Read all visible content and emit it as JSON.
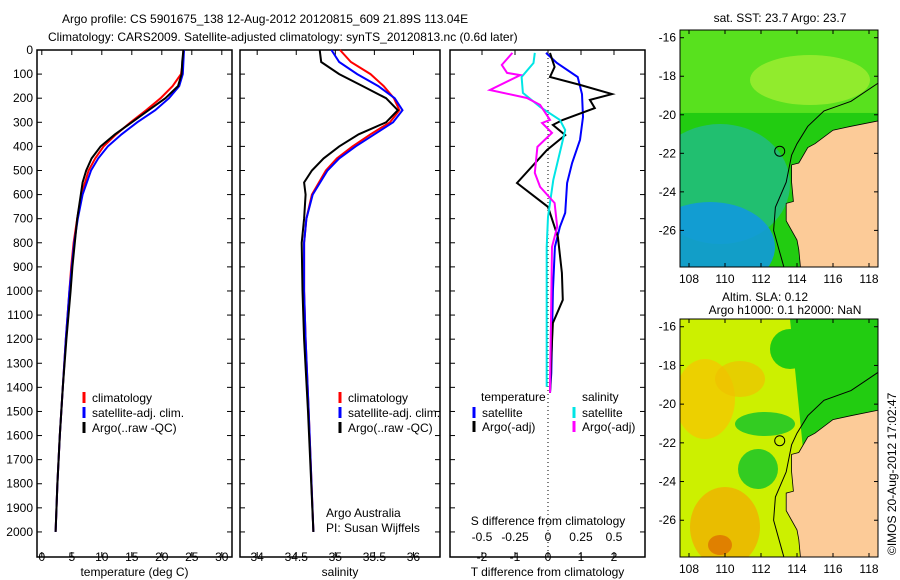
{
  "title_line1": "Argo profile: CS 5901675_138 12-Aug-2012 20120815_609 21.89S 113.04E",
  "title_line2": "Climatology: CARS2009. Satellite-adjusted climatology: synTS_20120813.nc (0.6d later)",
  "colors": {
    "climatology": "#ff0000",
    "satellite": "#0000ff",
    "argo": "#000000",
    "sal_satellite": "#00e5e5",
    "sal_argo": "#ff00ff",
    "land": "#fccb98"
  },
  "chart_data": [
    {
      "id": "temperature",
      "type": "line",
      "xlabel": "temperature (deg C)",
      "xlim": [
        -0.8,
        31.7
      ],
      "ylim": [
        0,
        2104
      ],
      "xticks": [
        0,
        5,
        10,
        15,
        20,
        25,
        30
      ],
      "yticks": [
        0,
        100,
        200,
        300,
        400,
        500,
        600,
        700,
        800,
        900,
        1000,
        1100,
        1200,
        1300,
        1400,
        1500,
        1600,
        1700,
        1800,
        1900,
        2000
      ],
      "legend": [
        "climatology",
        "satellite-adj. clim.",
        "Argo(..raw -QC)"
      ],
      "series": [
        {
          "name": "climatology",
          "color": "#ff0000",
          "depth": [
            0,
            50,
            100,
            150,
            200,
            250,
            300,
            350,
            400,
            450,
            500,
            600,
            700,
            800,
            900,
            1000,
            1200,
            1400,
            1600,
            1800,
            2000
          ],
          "values": [
            23.6,
            23.5,
            23.2,
            21.8,
            19.8,
            17.4,
            14.8,
            12.4,
            10.3,
            8.9,
            7.8,
            6.6,
            5.9,
            5.3,
            4.9,
            4.6,
            4.0,
            3.5,
            3.0,
            2.6,
            2.3
          ]
        },
        {
          "name": "satellite-adj. clim.",
          "color": "#0000ff",
          "depth": [
            0,
            50,
            100,
            150,
            200,
            250,
            300,
            350,
            400,
            450,
            500,
            600,
            700,
            800,
            900,
            1000,
            1200,
            1400,
            1600,
            1800,
            2000
          ],
          "values": [
            23.7,
            23.6,
            23.5,
            22.9,
            21.2,
            18.9,
            15.9,
            13.3,
            11.0,
            9.4,
            8.2,
            6.8,
            6.0,
            5.4,
            5.0,
            4.6,
            4.0,
            3.5,
            3.0,
            2.6,
            2.3
          ]
        },
        {
          "name": "Argo(..raw -QC)",
          "color": "#000000",
          "depth": [
            0,
            50,
            100,
            150,
            200,
            250,
            300,
            350,
            400,
            450,
            500,
            550,
            600,
            700,
            800,
            900,
            1000,
            1200,
            1400,
            1600,
            1800,
            2000
          ],
          "values": [
            23.6,
            23.4,
            23.3,
            22.7,
            20.6,
            17.8,
            15.0,
            12.2,
            9.8,
            8.3,
            7.4,
            6.8,
            6.5,
            5.9,
            5.5,
            5.1,
            4.8,
            4.1,
            3.5,
            3.0,
            2.6,
            2.3
          ]
        }
      ]
    },
    {
      "id": "salinity",
      "type": "line",
      "xlabel": "salinity",
      "xlim": [
        33.78,
        36.34
      ],
      "ylim": [
        0,
        2104
      ],
      "xticks": [
        34,
        34.5,
        35,
        35.5,
        36
      ],
      "legend": [
        "climatology",
        "satellite-adj. clim.",
        "Argo(..raw -QC)"
      ],
      "annotation": [
        "Argo Australia",
        "PI: Susan Wijffels"
      ],
      "series": [
        {
          "name": "climatology",
          "color": "#ff0000",
          "depth": [
            0,
            50,
            100,
            150,
            200,
            250,
            300,
            350,
            400,
            450,
            500,
            600,
            700,
            800,
            1000,
            1200,
            1500,
            2000
          ],
          "values": [
            35.06,
            35.2,
            35.45,
            35.62,
            35.75,
            35.82,
            35.7,
            35.45,
            35.22,
            35.02,
            34.88,
            34.7,
            34.63,
            34.6,
            34.6,
            34.62,
            34.66,
            34.72
          ]
        },
        {
          "name": "satellite-adj. clim.",
          "color": "#0000ff",
          "depth": [
            0,
            50,
            100,
            150,
            200,
            250,
            300,
            350,
            400,
            450,
            500,
            600,
            700,
            800,
            1000,
            1200,
            1500,
            2000
          ],
          "values": [
            34.95,
            35.05,
            35.28,
            35.55,
            35.76,
            35.86,
            35.74,
            35.5,
            35.26,
            35.05,
            34.9,
            34.71,
            34.63,
            34.6,
            34.6,
            34.62,
            34.66,
            34.72
          ]
        },
        {
          "name": "Argo(..raw -QC)",
          "color": "#000000",
          "depth": [
            0,
            50,
            100,
            150,
            200,
            250,
            300,
            350,
            400,
            450,
            500,
            550,
            600,
            700,
            800,
            1000,
            1200,
            1500,
            2000
          ],
          "values": [
            34.8,
            34.82,
            35.05,
            35.35,
            35.65,
            35.8,
            35.65,
            35.3,
            35.05,
            34.85,
            34.7,
            34.6,
            34.62,
            34.6,
            34.57,
            34.58,
            34.6,
            34.65,
            34.72
          ]
        }
      ]
    },
    {
      "id": "difference",
      "type": "line",
      "xlabel": "T difference from climatology",
      "xlabel_top": "S difference from climatology",
      "xlim": [
        -2.97,
        2.94
      ],
      "ylim": [
        0,
        2104
      ],
      "xticks": [
        -2,
        -1,
        0,
        1,
        2
      ],
      "xticks_s": [
        -0.5,
        -0.25,
        0,
        0.25,
        0.5
      ],
      "s_scale": 0.25,
      "legend_t_title": "temperature",
      "legend_s_title": "salinity",
      "legend": [
        "satellite",
        "Argo(-adj)",
        "satellite",
        "Argo(-adj)"
      ],
      "series": [
        {
          "name": "T satellite",
          "color": "#0000ff",
          "depth": [
            12,
            54,
            112,
            183,
            278,
            373,
            469,
            552,
            676,
            734,
            817,
            1000,
            1340,
            1423
          ],
          "values": [
            -0.06,
            0.27,
            0.9,
            1.03,
            1.06,
            0.97,
            0.73,
            0.58,
            0.52,
            0.36,
            0.21,
            0.15,
            0.1,
            0.06
          ]
        },
        {
          "name": "T Argo(-adj)",
          "color": "#000000",
          "depth": [
            12,
            70,
            112,
            145,
            183,
            207,
            241,
            290,
            311,
            353,
            415,
            552,
            651,
            776,
            925,
            1037,
            1133,
            1272,
            1423
          ],
          "values": [
            0.06,
            0.2,
            0.06,
            0.97,
            1.94,
            1.27,
            1.42,
            0.45,
            0.15,
            0.52,
            -0.03,
            -0.94,
            0,
            0.3,
            0.42,
            0.45,
            0.15,
            0.1,
            0.06
          ]
        },
        {
          "name": "S satellite",
          "color": "#00e5e5",
          "depth": [
            12,
            54,
            112,
            178,
            236,
            290,
            332,
            402,
            539,
            693,
            817,
            1398
          ],
          "values": [
            -0.1,
            -0.11,
            -0.2,
            -0.19,
            -0.06,
            0.09,
            0.13,
            0.1,
            0.04,
            0,
            -0.01,
            -0.01
          ]
        },
        {
          "name": "S Argo(-adj)",
          "color": "#ff00ff",
          "depth": [
            12,
            62,
            95,
            104,
            166,
            199,
            228,
            290,
            303,
            344,
            402,
            510,
            568,
            635,
            734,
            817,
            1423
          ],
          "values": [
            -0.27,
            -0.35,
            -0.31,
            -0.21,
            -0.44,
            -0.16,
            -0.06,
            0.015,
            -0.045,
            0.03,
            -0.08,
            -0.1,
            -0.06,
            0.05,
            0.07,
            0.03,
            0.015
          ]
        }
      ]
    },
    {
      "id": "sst_map",
      "type": "heatmap",
      "title": "sat. SST: 23.7 Argo: 23.7",
      "xlim": [
        107.5,
        118.5
      ],
      "ylim": [
        -27.9,
        -15.6
      ],
      "xticks": [
        108,
        110,
        112,
        114,
        116,
        118
      ],
      "yticks": [
        -16,
        -18,
        -20,
        -22,
        -24,
        -26
      ],
      "argo_position": [
        113.04,
        -21.89
      ]
    },
    {
      "id": "sla_map",
      "type": "heatmap",
      "title": "Altim. SLA: 0.12",
      "subtitle": "Argo h1000: 0.1 h2000: NaN",
      "xlim": [
        107.5,
        118.5
      ],
      "ylim": [
        -27.9,
        -15.6
      ],
      "xticks": [
        108,
        110,
        112,
        114,
        116,
        118
      ],
      "yticks": [
        -16,
        -18,
        -20,
        -22,
        -24,
        -26
      ],
      "argo_position": [
        113.04,
        -21.89
      ]
    }
  ],
  "credit": "©IMOS 20-Aug-2012 17:02:47"
}
